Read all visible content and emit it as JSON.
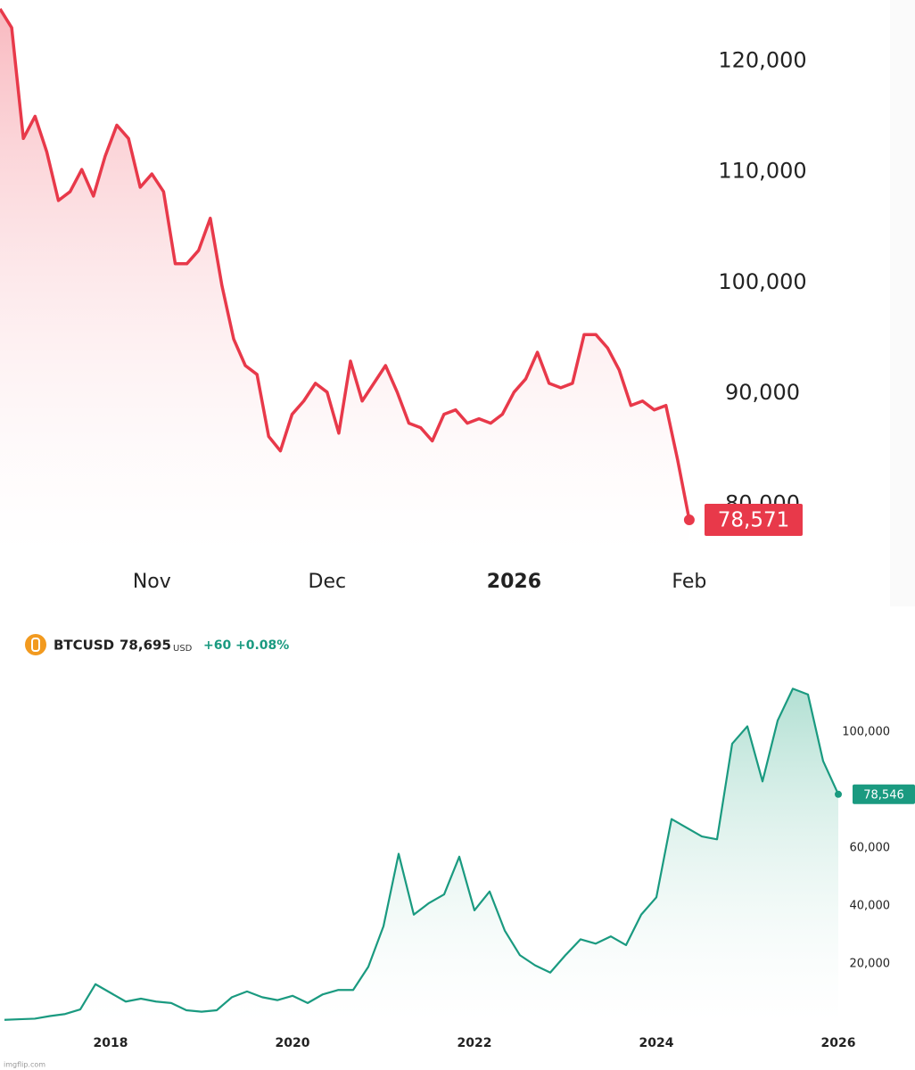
{
  "chart_data": [
    {
      "type": "area",
      "color": "#e8394a",
      "categories": [
        null,
        null,
        null,
        null,
        null,
        null,
        null,
        null,
        null,
        null,
        null,
        null,
        null,
        "Nov",
        null,
        null,
        null,
        null,
        null,
        null,
        null,
        null,
        null,
        null,
        null,
        null,
        null,
        null,
        "Dec",
        null,
        null,
        null,
        null,
        null,
        null,
        null,
        null,
        null,
        null,
        null,
        null,
        null,
        null,
        null,
        "2026",
        null,
        null,
        null,
        null,
        null,
        null,
        null,
        null,
        null,
        null,
        null,
        null,
        null,
        null,
        "Feb"
      ],
      "values": [
        124700,
        123000,
        113000,
        115000,
        111800,
        107400,
        108200,
        110200,
        107800,
        111400,
        114200,
        113000,
        108600,
        109800,
        108200,
        101700,
        101700,
        102900,
        105800,
        99700,
        94900,
        92500,
        91700,
        86100,
        84800,
        88100,
        89300,
        90900,
        90100,
        86400,
        92900,
        89300,
        90900,
        92500,
        90100,
        87300,
        86900,
        85700,
        88100,
        88500,
        87300,
        87700,
        87300,
        88100,
        90100,
        91300,
        93700,
        90900,
        90500,
        90900,
        95300,
        95300,
        94100,
        92100,
        88900,
        89300,
        88500,
        88900,
        84000,
        78571
      ],
      "last_value_label": "78,571",
      "ylim": [
        76000,
        125500
      ],
      "yticks": [
        {
          "value": 80000,
          "label": "80,000"
        },
        {
          "value": 90000,
          "label": "90,000"
        },
        {
          "value": 100000,
          "label": "100,000"
        },
        {
          "value": 110000,
          "label": "110,000"
        },
        {
          "value": 120000,
          "label": "120,000"
        }
      ]
    },
    {
      "type": "area",
      "color": "#1a9a80",
      "symbol": "BTCUSD",
      "price": "78,695",
      "currency": "USD",
      "change": "+60",
      "change_percent": "+0.08%",
      "categories": [
        null,
        null,
        null,
        null,
        null,
        null,
        null,
        "2018",
        null,
        null,
        null,
        null,
        null,
        null,
        null,
        null,
        null,
        null,
        null,
        "2020",
        null,
        null,
        null,
        null,
        null,
        null,
        null,
        null,
        null,
        null,
        null,
        "2022",
        null,
        null,
        null,
        null,
        null,
        null,
        null,
        null,
        null,
        null,
        null,
        "2024",
        null,
        null,
        null,
        null,
        null,
        null,
        null,
        null,
        null,
        null,
        null,
        "2026"
      ],
      "values": [
        700,
        900,
        1100,
        2000,
        2700,
        4300,
        13000,
        10000,
        7000,
        8000,
        7000,
        6500,
        4000,
        3500,
        4000,
        8500,
        10500,
        8500,
        7500,
        9000,
        6500,
        9500,
        11000,
        11000,
        19000,
        33000,
        58000,
        37000,
        41000,
        44000,
        57000,
        38500,
        45000,
        31500,
        23000,
        19500,
        17000,
        23000,
        28500,
        27000,
        29500,
        26500,
        37000,
        43000,
        70000,
        67000,
        64000,
        63000,
        96000,
        102000,
        83000,
        104000,
        115000,
        113000,
        90000,
        78546
      ],
      "last_value_label": "78,546",
      "ylim": [
        0,
        118800
      ],
      "yticks": [
        {
          "value": 20000,
          "label": "20,000"
        },
        {
          "value": 40000,
          "label": "40,000"
        },
        {
          "value": 60000,
          "label": "60,000"
        },
        {
          "value": 100000,
          "label": "100,000"
        }
      ]
    }
  ],
  "watermark": "imgflip.com"
}
